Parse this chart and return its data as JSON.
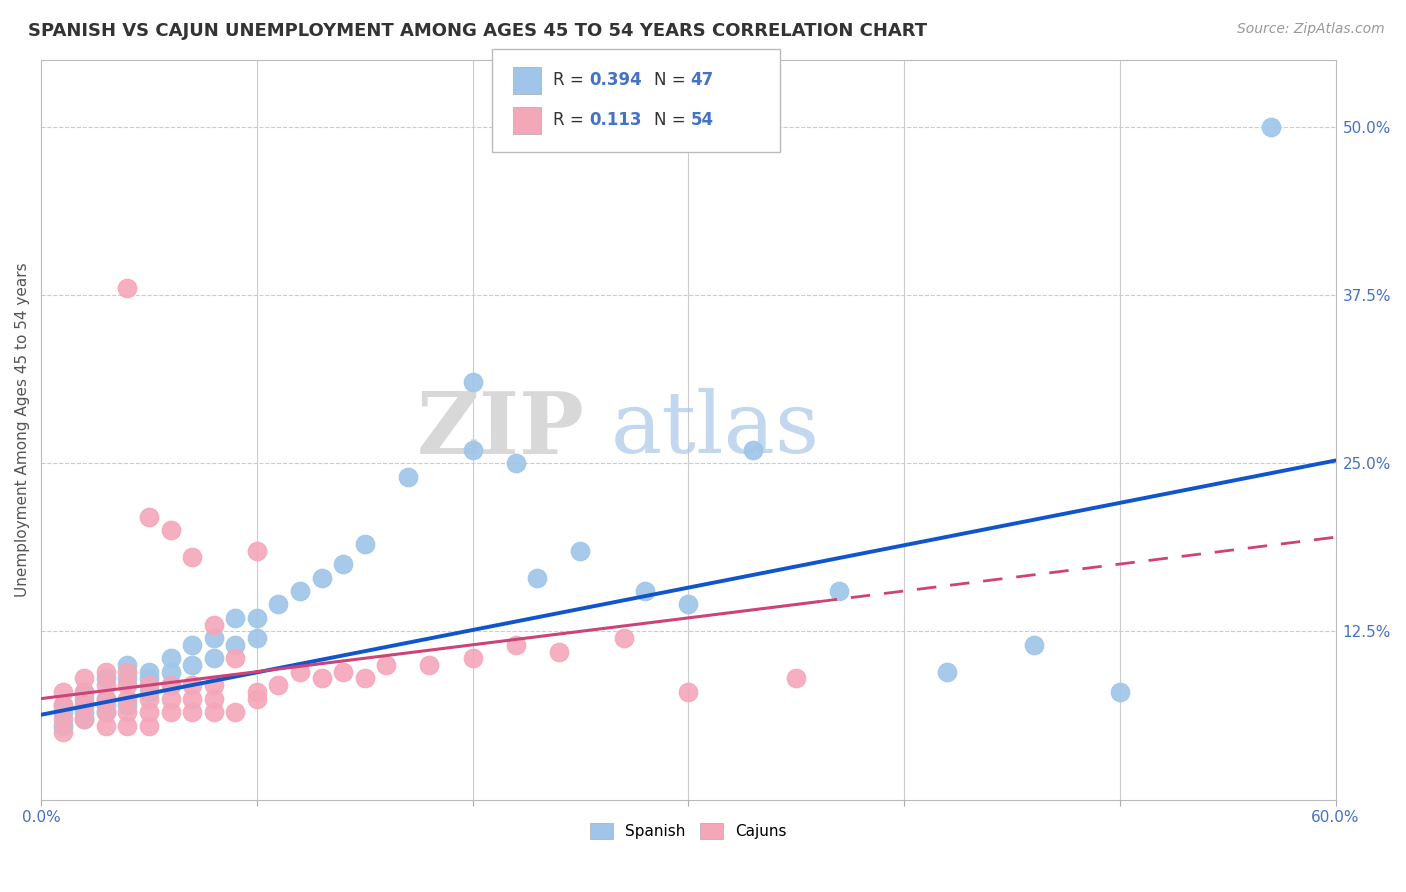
{
  "title": "SPANISH VS CAJUN UNEMPLOYMENT AMONG AGES 45 TO 54 YEARS CORRELATION CHART",
  "source": "Source: ZipAtlas.com",
  "ylabel": "Unemployment Among Ages 45 to 54 years",
  "xmin": 0.0,
  "xmax": 0.6,
  "ymin": 0.0,
  "ymax": 0.55,
  "legend_r_spanish": "0.394",
  "legend_n_spanish": "47",
  "legend_r_cajun": "0.113",
  "legend_n_cajun": "54",
  "spanish_color": "#9fc5e8",
  "cajun_color": "#f4a7b9",
  "spanish_line_color": "#1155cc",
  "cajun_line_color": "#cc4477",
  "background_color": "#ffffff",
  "watermark_zip": "ZIP",
  "watermark_atlas": "atlas",
  "title_fontsize": 13,
  "source_fontsize": 10,
  "spanish_x": [
    0.01,
    0.01,
    0.01,
    0.02,
    0.02,
    0.02,
    0.02,
    0.03,
    0.03,
    0.03,
    0.03,
    0.04,
    0.04,
    0.04,
    0.05,
    0.05,
    0.05,
    0.06,
    0.06,
    0.06,
    0.07,
    0.07,
    0.08,
    0.08,
    0.09,
    0.09,
    0.1,
    0.1,
    0.11,
    0.12,
    0.13,
    0.14,
    0.15,
    0.17,
    0.2,
    0.2,
    0.22,
    0.23,
    0.25,
    0.28,
    0.3,
    0.33,
    0.37,
    0.42,
    0.46,
    0.5,
    0.57
  ],
  "spanish_y": [
    0.055,
    0.065,
    0.07,
    0.06,
    0.065,
    0.075,
    0.08,
    0.065,
    0.07,
    0.075,
    0.09,
    0.07,
    0.09,
    0.1,
    0.08,
    0.09,
    0.095,
    0.085,
    0.095,
    0.105,
    0.1,
    0.115,
    0.105,
    0.12,
    0.115,
    0.135,
    0.12,
    0.135,
    0.145,
    0.155,
    0.165,
    0.175,
    0.19,
    0.24,
    0.26,
    0.31,
    0.25,
    0.165,
    0.185,
    0.155,
    0.145,
    0.26,
    0.155,
    0.095,
    0.115,
    0.08,
    0.5
  ],
  "cajun_x": [
    0.01,
    0.01,
    0.01,
    0.01,
    0.02,
    0.02,
    0.02,
    0.02,
    0.03,
    0.03,
    0.03,
    0.03,
    0.03,
    0.04,
    0.04,
    0.04,
    0.04,
    0.04,
    0.04,
    0.05,
    0.05,
    0.05,
    0.05,
    0.05,
    0.06,
    0.06,
    0.06,
    0.06,
    0.07,
    0.07,
    0.07,
    0.07,
    0.08,
    0.08,
    0.08,
    0.08,
    0.09,
    0.09,
    0.1,
    0.1,
    0.1,
    0.11,
    0.12,
    0.13,
    0.14,
    0.15,
    0.16,
    0.18,
    0.2,
    0.22,
    0.24,
    0.27,
    0.3,
    0.35
  ],
  "cajun_y": [
    0.05,
    0.06,
    0.07,
    0.08,
    0.06,
    0.07,
    0.08,
    0.09,
    0.055,
    0.065,
    0.075,
    0.085,
    0.095,
    0.055,
    0.065,
    0.075,
    0.085,
    0.095,
    0.38,
    0.055,
    0.065,
    0.075,
    0.085,
    0.21,
    0.065,
    0.075,
    0.085,
    0.2,
    0.065,
    0.075,
    0.085,
    0.18,
    0.065,
    0.075,
    0.085,
    0.13,
    0.065,
    0.105,
    0.075,
    0.08,
    0.185,
    0.085,
    0.095,
    0.09,
    0.095,
    0.09,
    0.1,
    0.1,
    0.105,
    0.115,
    0.11,
    0.12,
    0.08,
    0.09
  ],
  "spanish_trend_x0": 0.0,
  "spanish_trend_y0": 0.063,
  "spanish_trend_x1": 0.6,
  "spanish_trend_y1": 0.252,
  "cajun_trend_x0": 0.0,
  "cajun_trend_y0": 0.075,
  "cajun_trend_x1": 0.6,
  "cajun_trend_y1": 0.195
}
